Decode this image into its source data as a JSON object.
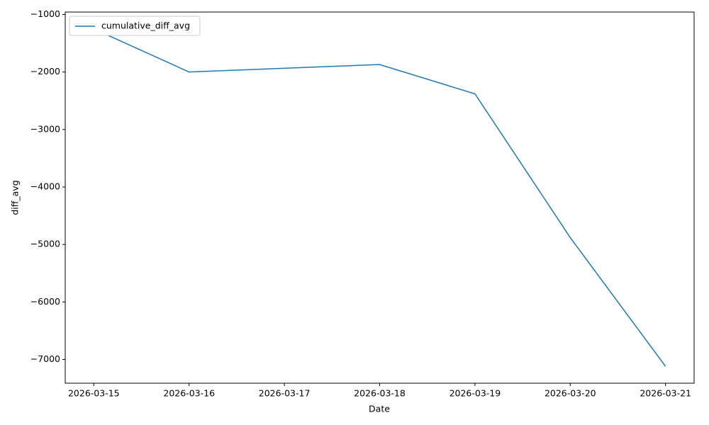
{
  "chart_data": {
    "type": "line",
    "x_label": "Date",
    "y_label": "diff_avg",
    "x": [
      "2026-03-15",
      "2026-03-16",
      "2026-03-18",
      "2026-03-19",
      "2026-03-20",
      "2026-03-21"
    ],
    "series": [
      {
        "name": "cumulative_diff_avg",
        "color": "#1f77b4",
        "values": [
          -1250,
          -2000,
          -1870,
          -2380,
          -4880,
          -7120
        ]
      }
    ],
    "xlim": [
      "2026-03-14T16:48:00Z",
      "2026-03-21T07:12:00Z"
    ],
    "xticks": [
      "2026-03-15",
      "2026-03-16",
      "2026-03-17",
      "2026-03-18",
      "2026-03-19",
      "2026-03-20",
      "2026-03-21"
    ],
    "ylim": [
      -7413,
      -957
    ],
    "yticks": [
      {
        "value": -7000,
        "label": "−7000"
      },
      {
        "value": -6000,
        "label": "−6000"
      },
      {
        "value": -5000,
        "label": "−5000"
      },
      {
        "value": -4000,
        "label": "−4000"
      },
      {
        "value": -3000,
        "label": "−3000"
      },
      {
        "value": -2000,
        "label": "−2000"
      },
      {
        "value": -1000,
        "label": "−1000"
      }
    ],
    "grid": false,
    "legend_position": "upper-left"
  }
}
